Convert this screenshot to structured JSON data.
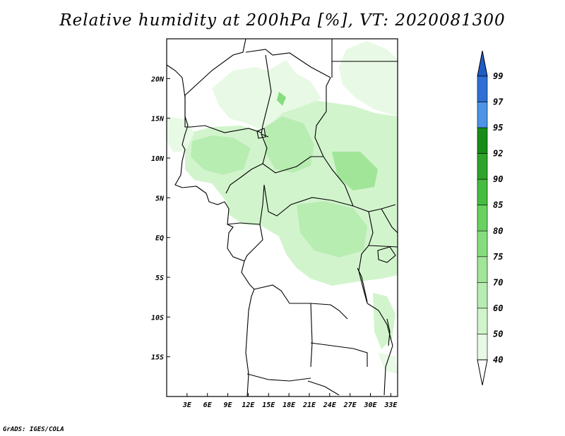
{
  "title": "Relative humidity at 200hPa [%], VT: 2020081300",
  "credit": "GrADS: IGES/COLA",
  "map": {
    "lon_range": [
      0,
      34
    ],
    "lat_range": [
      -20,
      25
    ],
    "lon_ticks": [
      {
        "value": 3,
        "label": "3E"
      },
      {
        "value": 6,
        "label": "6E"
      },
      {
        "value": 9,
        "label": "9E"
      },
      {
        "value": 12,
        "label": "12E"
      },
      {
        "value": 15,
        "label": "15E"
      },
      {
        "value": 18,
        "label": "18E"
      },
      {
        "value": 21,
        "label": "21E"
      },
      {
        "value": 24,
        "label": "24E"
      },
      {
        "value": 27,
        "label": "27E"
      },
      {
        "value": 30,
        "label": "30E"
      },
      {
        "value": 33,
        "label": "33E"
      }
    ],
    "lat_ticks": [
      {
        "value": 20,
        "label": "20N"
      },
      {
        "value": 15,
        "label": "15N"
      },
      {
        "value": 10,
        "label": "10N"
      },
      {
        "value": 5,
        "label": "5N"
      },
      {
        "value": 0,
        "label": "EQ"
      },
      {
        "value": -5,
        "label": "5S"
      },
      {
        "value": -10,
        "label": "10S"
      },
      {
        "value": -15,
        "label": "15S"
      }
    ]
  },
  "colorbar": {
    "levels": [
      {
        "label": "40",
        "color": "#ffffff"
      },
      {
        "label": "50",
        "color": "#e8f9e5"
      },
      {
        "label": "60",
        "color": "#d2f4cd"
      },
      {
        "label": "70",
        "color": "#b8edb2"
      },
      {
        "label": "75",
        "color": "#a0e598"
      },
      {
        "label": "80",
        "color": "#86dd7e"
      },
      {
        "label": "85",
        "color": "#68d160"
      },
      {
        "label": "90",
        "color": "#46bd40"
      },
      {
        "label": "92",
        "color": "#2ea42a"
      },
      {
        "label": "95",
        "color": "#178d17"
      },
      {
        "label": "97",
        "color": "#4b94e6"
      },
      {
        "label": "99",
        "color": "#2f6fd6"
      }
    ],
    "top_arrow_color": "#1e5cc6",
    "bottom_arrow_color": "#ffffff"
  }
}
